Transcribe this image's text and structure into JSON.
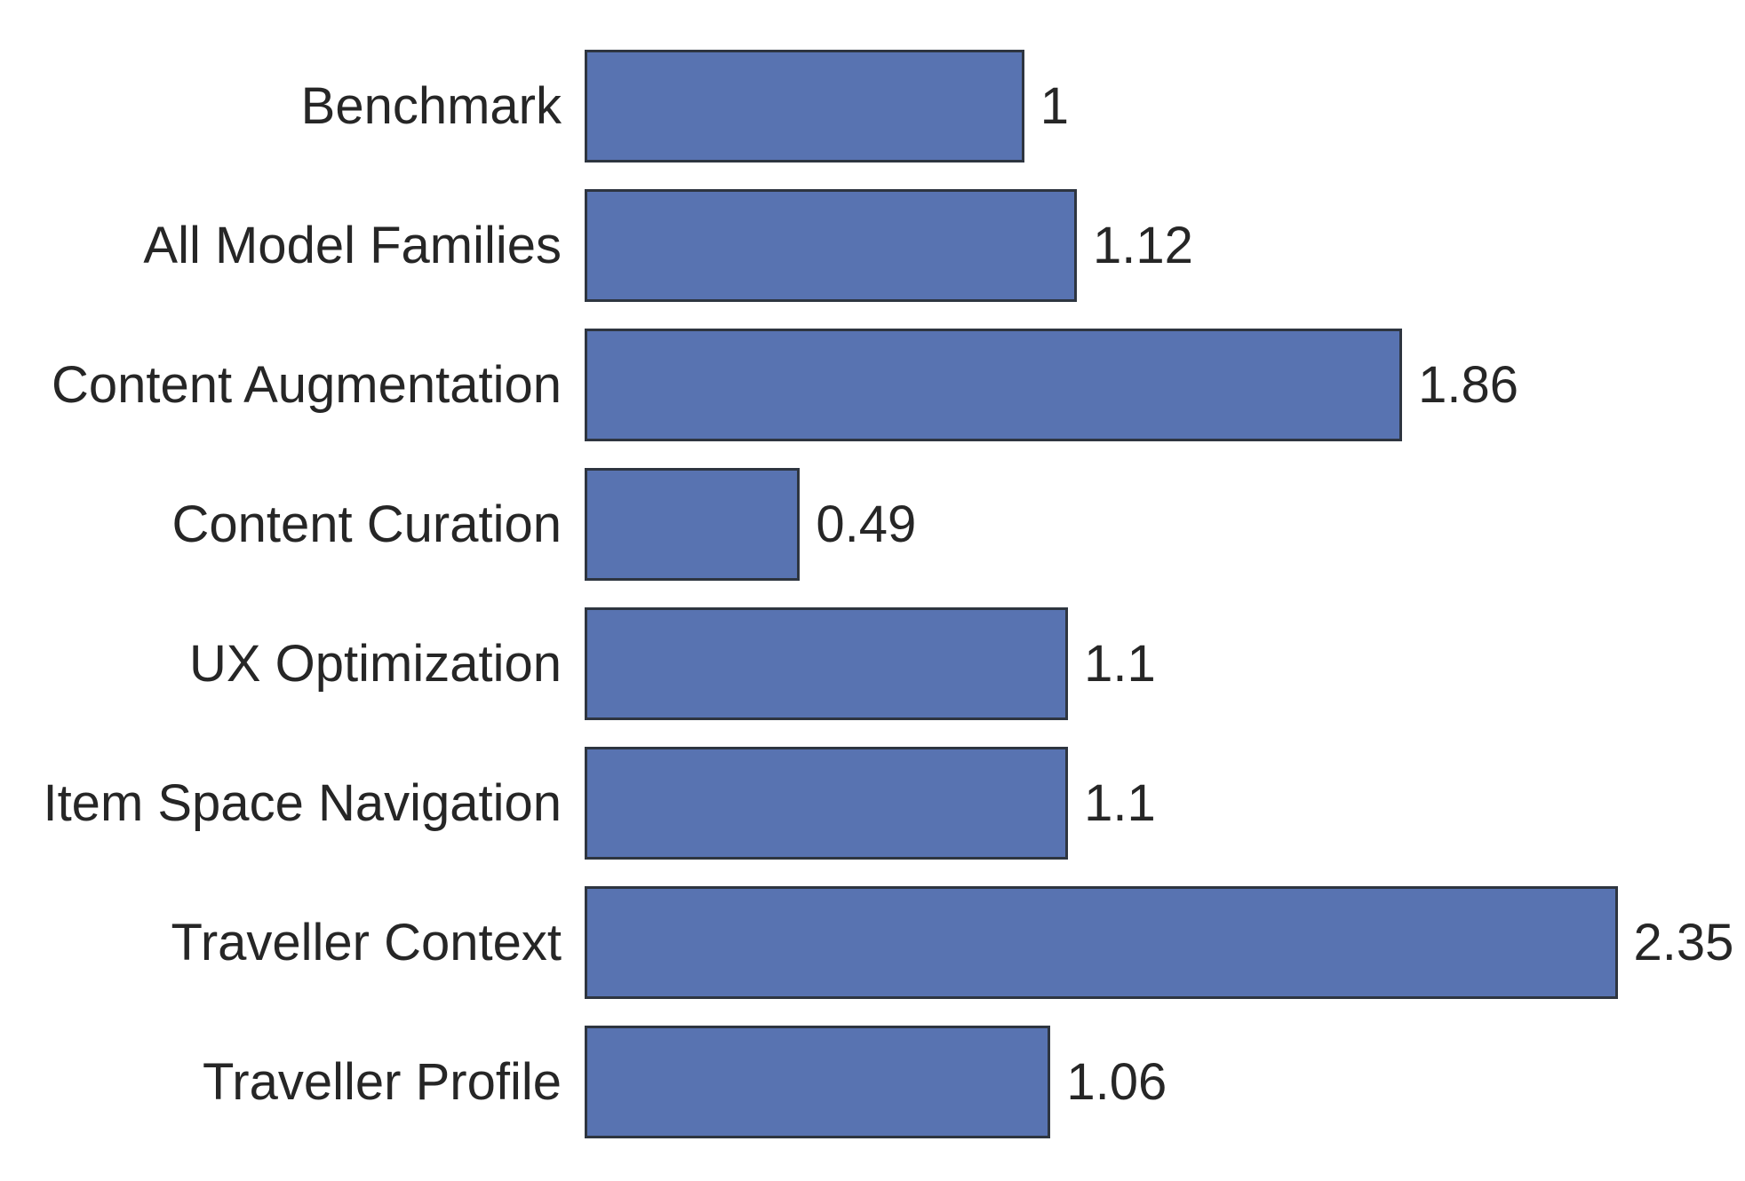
{
  "chart_data": {
    "type": "bar",
    "orientation": "horizontal",
    "title": "",
    "xlabel": "",
    "ylabel": "",
    "grid": false,
    "legend": null,
    "xlim": [
      0,
      2.64
    ],
    "categories": [
      "Benchmark",
      "All Model Families",
      "Content Augmentation",
      "Content Curation",
      "UX Optimization",
      "Item Space Navigation",
      "Traveller Context",
      "Traveller Profile"
    ],
    "values": [
      1,
      1.12,
      1.86,
      0.49,
      1.1,
      1.1,
      2.35,
      1.06
    ],
    "value_labels": [
      "1",
      "1.12",
      "1.86",
      "0.49",
      "1.1",
      "1.1",
      "2.35",
      "1.06"
    ],
    "bar_color": "#5873b1",
    "bar_edge_color": "#2e3540",
    "text_color": "#262626",
    "background": "#ffffff"
  }
}
